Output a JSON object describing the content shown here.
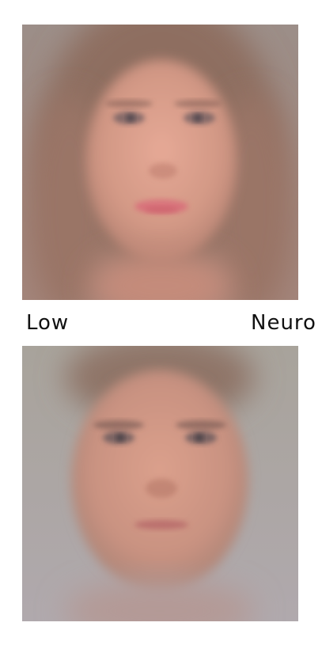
{
  "caption": {
    "left_label": "Low",
    "right_label": "Neuro"
  },
  "images": [
    {
      "name": "composite-face-female"
    },
    {
      "name": "composite-face-male"
    }
  ]
}
